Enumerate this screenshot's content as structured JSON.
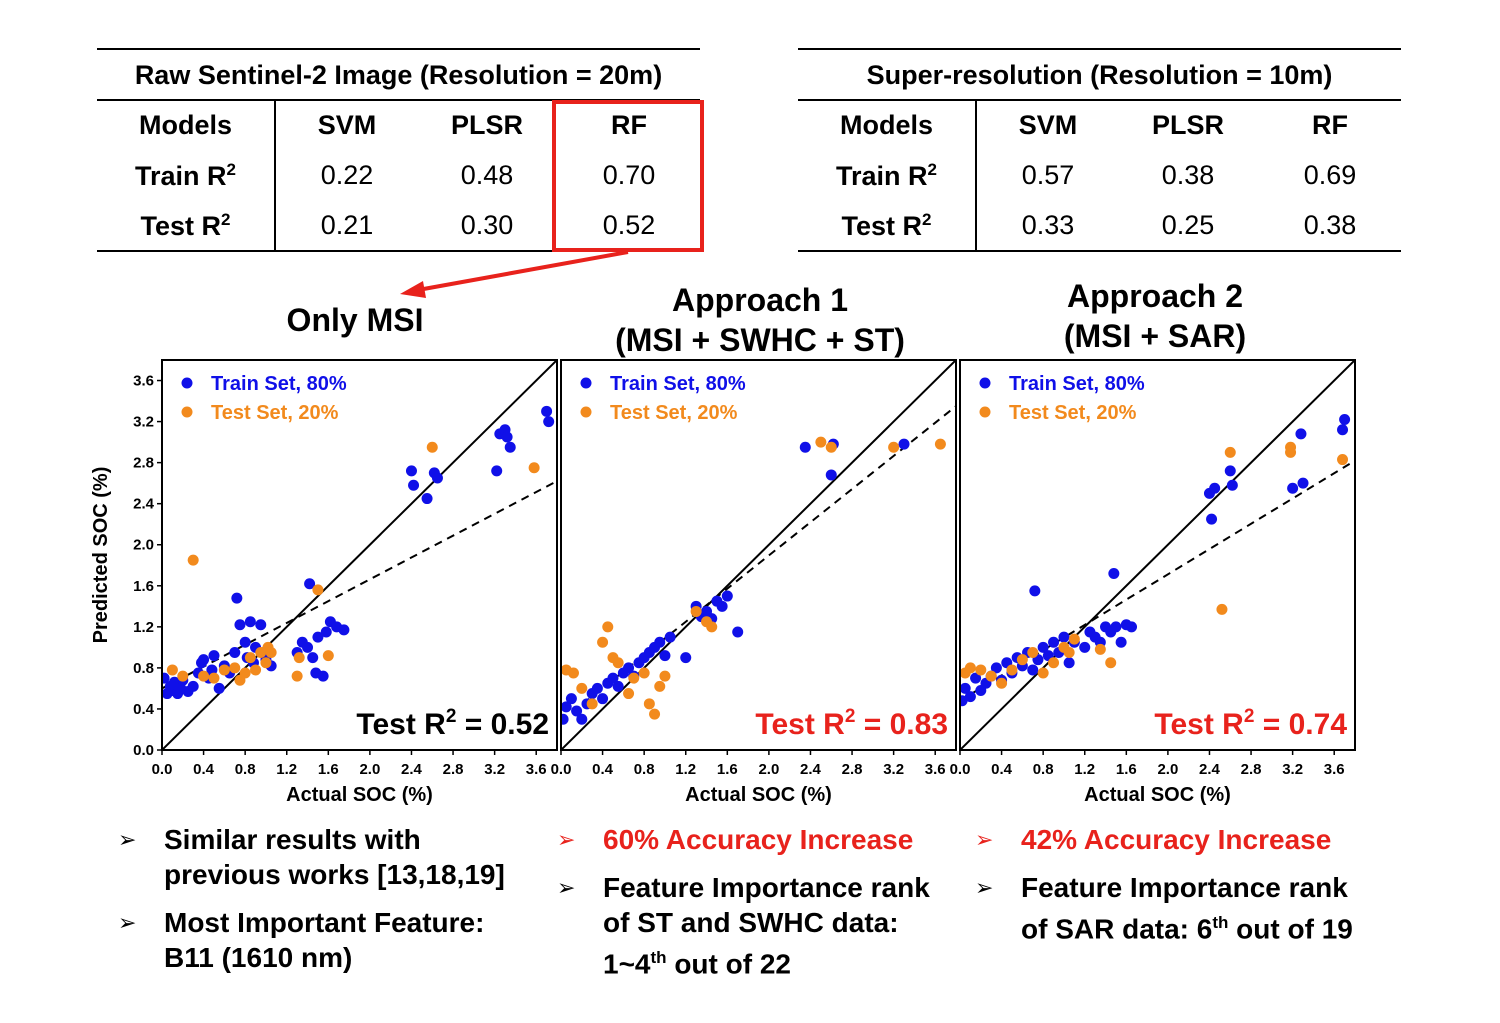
{
  "tables": [
    {
      "title": "Raw Sentinel-2 Image (Resolution = 20m)",
      "headers": [
        "Models",
        "SVM",
        "PLSR",
        "RF"
      ],
      "rows": [
        {
          "label": "Train R",
          "sup": "2",
          "values": [
            "0.22",
            "0.48",
            "0.70"
          ]
        },
        {
          "label": "Test R",
          "sup": "2",
          "values": [
            "0.21",
            "0.30",
            "0.52"
          ]
        }
      ]
    },
    {
      "title": "Super-resolution (Resolution = 10m)",
      "headers": [
        "Models",
        "SVM",
        "PLSR",
        "RF"
      ],
      "rows": [
        {
          "label": "Train R",
          "sup": "2",
          "values": [
            "0.57",
            "0.38",
            "0.69"
          ]
        },
        {
          "label": "Test R",
          "sup": "2",
          "values": [
            "0.33",
            "0.25",
            "0.38"
          ]
        }
      ]
    }
  ],
  "headings": {
    "only_msi": "Only MSI",
    "approach1_line1": "Approach 1",
    "approach1_line2": "(MSI + SWHC + ST)",
    "approach2_line1": "Approach 2",
    "approach2_line2": "(MSI + SAR)"
  },
  "colors": {
    "train": "#1010e8",
    "test": "#f28a1d",
    "highlight": "#e8221c"
  },
  "chart_data": [
    {
      "type": "scatter",
      "title": "Only MSI",
      "xlabel": "Actual SOC (%)",
      "ylabel": "Predicted SOC (%)",
      "xlim": [
        0,
        3.8
      ],
      "ylim": [
        0,
        3.8
      ],
      "xticks": [
        "0.0",
        "0.4",
        "0.8",
        "1.2",
        "1.6",
        "2.0",
        "2.4",
        "2.8",
        "3.2",
        "3.6"
      ],
      "yticks": [
        "0.0",
        "0.4",
        "0.8",
        "1.2",
        "1.6",
        "2.0",
        "2.4",
        "2.8",
        "3.2",
        "3.6"
      ],
      "legend": [
        "Train Set, 80%",
        "Test Set, 20%"
      ],
      "annotation": {
        "text": "Test R",
        "sup": "2",
        "value": " = 0.52",
        "color": "#000000"
      },
      "identity_line": true,
      "fit_line": [
        [
          0.0,
          0.6
        ],
        [
          3.8,
          2.62
        ]
      ],
      "series": [
        {
          "name": "Train Set, 80%",
          "points": [
            [
              0.02,
              0.7
            ],
            [
              0.05,
              0.55
            ],
            [
              0.08,
              0.62
            ],
            [
              0.1,
              0.58
            ],
            [
              0.12,
              0.66
            ],
            [
              0.15,
              0.55
            ],
            [
              0.18,
              0.6
            ],
            [
              0.2,
              0.68
            ],
            [
              0.25,
              0.57
            ],
            [
              0.3,
              0.62
            ],
            [
              0.35,
              0.75
            ],
            [
              0.38,
              0.85
            ],
            [
              0.4,
              0.88
            ],
            [
              0.45,
              0.7
            ],
            [
              0.48,
              0.78
            ],
            [
              0.5,
              0.92
            ],
            [
              0.55,
              0.6
            ],
            [
              0.6,
              0.82
            ],
            [
              0.65,
              0.75
            ],
            [
              0.7,
              0.95
            ],
            [
              0.72,
              1.48
            ],
            [
              0.75,
              1.22
            ],
            [
              0.8,
              1.05
            ],
            [
              0.82,
              0.9
            ],
            [
              0.85,
              1.25
            ],
            [
              0.88,
              0.85
            ],
            [
              0.9,
              1.0
            ],
            [
              0.95,
              1.22
            ],
            [
              0.98,
              0.95
            ],
            [
              1.0,
              0.88
            ],
            [
              1.05,
              0.82
            ],
            [
              1.3,
              0.95
            ],
            [
              1.35,
              1.05
            ],
            [
              1.4,
              1.0
            ],
            [
              1.42,
              1.62
            ],
            [
              1.45,
              0.9
            ],
            [
              1.48,
              0.75
            ],
            [
              1.5,
              1.1
            ],
            [
              1.55,
              0.72
            ],
            [
              1.58,
              1.15
            ],
            [
              1.62,
              1.25
            ],
            [
              1.68,
              1.2
            ],
            [
              1.75,
              1.17
            ],
            [
              2.4,
              2.72
            ],
            [
              2.42,
              2.58
            ],
            [
              2.55,
              2.45
            ],
            [
              2.62,
              2.7
            ],
            [
              2.65,
              2.65
            ],
            [
              3.22,
              2.72
            ],
            [
              3.25,
              3.08
            ],
            [
              3.3,
              3.12
            ],
            [
              3.32,
              3.05
            ],
            [
              3.35,
              2.95
            ],
            [
              3.7,
              3.3
            ],
            [
              3.72,
              3.2
            ]
          ]
        },
        {
          "name": "Test Set, 20%",
          "points": [
            [
              0.1,
              0.78
            ],
            [
              0.2,
              0.72
            ],
            [
              0.3,
              1.85
            ],
            [
              0.4,
              0.72
            ],
            [
              0.5,
              0.7
            ],
            [
              0.6,
              0.78
            ],
            [
              0.7,
              0.8
            ],
            [
              0.75,
              0.68
            ],
            [
              0.8,
              0.75
            ],
            [
              0.85,
              0.9
            ],
            [
              0.9,
              0.78
            ],
            [
              0.95,
              0.95
            ],
            [
              1.0,
              0.85
            ],
            [
              1.02,
              1.0
            ],
            [
              1.05,
              0.95
            ],
            [
              1.3,
              0.72
            ],
            [
              1.32,
              0.9
            ],
            [
              1.5,
              1.56
            ],
            [
              1.6,
              0.92
            ],
            [
              2.6,
              2.95
            ],
            [
              3.58,
              2.75
            ]
          ]
        }
      ]
    },
    {
      "type": "scatter",
      "title": "Approach 1 (MSI + SWHC + ST)",
      "xlabel": "Actual SOC (%)",
      "ylabel": "Predicted SOC (%)",
      "xlim": [
        0,
        3.8
      ],
      "ylim": [
        0,
        3.8
      ],
      "xticks": [
        "0.0",
        "0.4",
        "0.8",
        "1.2",
        "1.6",
        "2.0",
        "2.4",
        "2.8",
        "3.2",
        "3.6"
      ],
      "yticks": [
        "0.0",
        "0.4",
        "0.8",
        "1.2",
        "1.6",
        "2.0",
        "2.4",
        "2.8",
        "3.2",
        "3.6"
      ],
      "legend": [
        "Train Set, 80%",
        "Test Set, 20%"
      ],
      "annotation": {
        "text": "Test R",
        "sup": "2",
        "value": " = 0.83",
        "color": "#e8221c"
      },
      "identity_line": true,
      "fit_line": [
        [
          0.0,
          0.28
        ],
        [
          3.8,
          3.35
        ]
      ],
      "series": [
        {
          "name": "Train Set, 80%",
          "points": [
            [
              0.02,
              0.3
            ],
            [
              0.05,
              0.42
            ],
            [
              0.1,
              0.5
            ],
            [
              0.15,
              0.38
            ],
            [
              0.2,
              0.3
            ],
            [
              0.25,
              0.45
            ],
            [
              0.3,
              0.55
            ],
            [
              0.35,
              0.6
            ],
            [
              0.4,
              0.5
            ],
            [
              0.45,
              0.65
            ],
            [
              0.5,
              0.7
            ],
            [
              0.55,
              0.62
            ],
            [
              0.6,
              0.75
            ],
            [
              0.65,
              0.8
            ],
            [
              0.7,
              0.72
            ],
            [
              0.75,
              0.85
            ],
            [
              0.8,
              0.9
            ],
            [
              0.85,
              0.95
            ],
            [
              0.9,
              1.0
            ],
            [
              0.95,
              1.05
            ],
            [
              1.0,
              0.92
            ],
            [
              1.05,
              1.1
            ],
            [
              1.2,
              0.9
            ],
            [
              1.3,
              1.4
            ],
            [
              1.35,
              1.3
            ],
            [
              1.4,
              1.35
            ],
            [
              1.45,
              1.28
            ],
            [
              1.5,
              1.45
            ],
            [
              1.55,
              1.4
            ],
            [
              1.6,
              1.5
            ],
            [
              1.7,
              1.15
            ],
            [
              2.35,
              2.95
            ],
            [
              2.6,
              2.68
            ],
            [
              2.62,
              2.98
            ],
            [
              3.3,
              2.98
            ]
          ]
        },
        {
          "name": "Test Set, 20%",
          "points": [
            [
              0.05,
              0.78
            ],
            [
              0.12,
              0.75
            ],
            [
              0.2,
              0.6
            ],
            [
              0.3,
              0.45
            ],
            [
              0.4,
              1.05
            ],
            [
              0.45,
              1.2
            ],
            [
              0.5,
              0.9
            ],
            [
              0.55,
              0.85
            ],
            [
              0.65,
              0.55
            ],
            [
              0.7,
              0.7
            ],
            [
              0.8,
              0.75
            ],
            [
              0.85,
              0.45
            ],
            [
              0.9,
              0.35
            ],
            [
              0.95,
              0.62
            ],
            [
              1.0,
              0.72
            ],
            [
              1.3,
              1.35
            ],
            [
              1.4,
              1.25
            ],
            [
              1.45,
              1.2
            ],
            [
              2.5,
              3.0
            ],
            [
              2.6,
              2.95
            ],
            [
              3.2,
              2.95
            ],
            [
              3.65,
              2.98
            ]
          ]
        }
      ]
    },
    {
      "type": "scatter",
      "title": "Approach 2 (MSI + SAR)",
      "xlabel": "Actual SOC (%)",
      "ylabel": "Predicted SOC (%)",
      "xlim": [
        0,
        3.8
      ],
      "ylim": [
        0,
        3.8
      ],
      "xticks": [
        "0.0",
        "0.4",
        "0.8",
        "1.2",
        "1.6",
        "2.0",
        "2.4",
        "2.8",
        "3.2",
        "3.6"
      ],
      "yticks": [
        "0.0",
        "0.4",
        "0.8",
        "1.2",
        "1.6",
        "2.0",
        "2.4",
        "2.8",
        "3.2",
        "3.6"
      ],
      "legend": [
        "Train Set, 80%",
        "Test Set, 20%"
      ],
      "annotation": {
        "text": "Test R",
        "sup": "2",
        "value": " = 0.74",
        "color": "#e8221c"
      },
      "identity_line": true,
      "fit_line": [
        [
          0.0,
          0.48
        ],
        [
          3.8,
          2.82
        ]
      ],
      "series": [
        {
          "name": "Train Set, 80%",
          "points": [
            [
              0.02,
              0.48
            ],
            [
              0.05,
              0.6
            ],
            [
              0.1,
              0.52
            ],
            [
              0.15,
              0.7
            ],
            [
              0.2,
              0.58
            ],
            [
              0.25,
              0.65
            ],
            [
              0.3,
              0.72
            ],
            [
              0.35,
              0.8
            ],
            [
              0.4,
              0.68
            ],
            [
              0.45,
              0.85
            ],
            [
              0.5,
              0.75
            ],
            [
              0.55,
              0.9
            ],
            [
              0.6,
              0.82
            ],
            [
              0.65,
              0.95
            ],
            [
              0.7,
              0.78
            ],
            [
              0.72,
              1.55
            ],
            [
              0.75,
              0.88
            ],
            [
              0.8,
              1.0
            ],
            [
              0.85,
              0.92
            ],
            [
              0.9,
              1.05
            ],
            [
              0.95,
              0.95
            ],
            [
              1.0,
              1.1
            ],
            [
              1.05,
              0.85
            ],
            [
              1.1,
              1.05
            ],
            [
              1.2,
              1.0
            ],
            [
              1.25,
              1.15
            ],
            [
              1.3,
              1.1
            ],
            [
              1.35,
              1.05
            ],
            [
              1.4,
              1.2
            ],
            [
              1.45,
              1.15
            ],
            [
              1.48,
              1.72
            ],
            [
              1.5,
              1.2
            ],
            [
              1.55,
              1.05
            ],
            [
              1.6,
              1.22
            ],
            [
              1.65,
              1.2
            ],
            [
              2.4,
              2.5
            ],
            [
              2.42,
              2.25
            ],
            [
              2.45,
              2.55
            ],
            [
              2.6,
              2.72
            ],
            [
              2.62,
              2.58
            ],
            [
              3.2,
              2.55
            ],
            [
              3.28,
              3.08
            ],
            [
              3.3,
              2.6
            ],
            [
              3.68,
              3.12
            ],
            [
              3.7,
              3.22
            ]
          ]
        },
        {
          "name": "Test Set, 20%",
          "points": [
            [
              0.05,
              0.75
            ],
            [
              0.1,
              0.8
            ],
            [
              0.2,
              0.78
            ],
            [
              0.3,
              0.72
            ],
            [
              0.4,
              0.65
            ],
            [
              0.5,
              0.78
            ],
            [
              0.6,
              0.88
            ],
            [
              0.7,
              0.95
            ],
            [
              0.8,
              0.75
            ],
            [
              0.9,
              0.85
            ],
            [
              1.0,
              1.0
            ],
            [
              1.05,
              0.95
            ],
            [
              1.1,
              1.08
            ],
            [
              1.35,
              0.98
            ],
            [
              1.45,
              0.85
            ],
            [
              2.52,
              1.37
            ],
            [
              2.6,
              2.9
            ],
            [
              3.18,
              2.95
            ],
            [
              3.18,
              2.9
            ],
            [
              3.68,
              2.83
            ]
          ]
        }
      ]
    }
  ],
  "bullets": {
    "col1": [
      {
        "lines": [
          "Similar results with",
          "previous works [13,18,19]"
        ]
      },
      {
        "lines": [
          "Most Important Feature:",
          "B11 (1610 nm)"
        ]
      }
    ],
    "col2_red": "60% Accuracy Increase",
    "col2_rank_l1": "Feature Importance rank",
    "col2_rank_l2": "of ST and SWHC data:",
    "col2_rank_l3a": "1~4",
    "col2_rank_l3sup": "th",
    "col2_rank_l3b": " out of 22",
    "col3_red": "42% Accuracy Increase",
    "col3_rank_l1": "Feature Importance rank",
    "col3_rank_l2a": "of SAR data: 6",
    "col3_rank_l2sup": "th",
    "col3_rank_l2b": " out of 19"
  }
}
